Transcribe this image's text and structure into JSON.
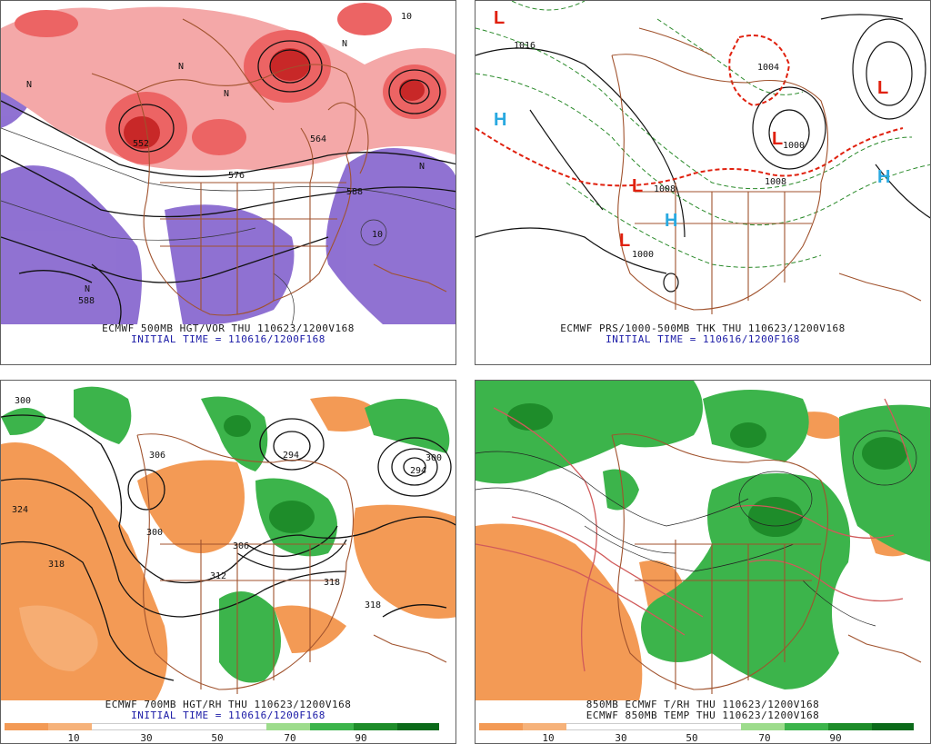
{
  "panels": {
    "p1": {
      "caption1": "ECMWF 500MB HGT/VOR THU 110623/1200V168",
      "caption2": "INITIAL TIME = 110616/1200F168",
      "labels": [
        "552",
        "576",
        "588",
        "588",
        "564",
        "10",
        "10",
        "N",
        "N",
        "N",
        "N",
        "N",
        "N"
      ]
    },
    "p2": {
      "caption1": "ECMWF PRS/1000-500MB THK THU 110623/1200V168",
      "caption2": "INITIAL TIME = 110616/1200F168",
      "highs": [
        "H",
        "H",
        "H"
      ],
      "lows": [
        "L",
        "L",
        "L",
        "L",
        "L"
      ],
      "labels": [
        "1016",
        "1008",
        "1000",
        "1000",
        "1008",
        "1004"
      ]
    },
    "p3": {
      "caption1": "ECMWF 700MB HGT/RH THU 110623/1200V168",
      "caption2": "INITIAL TIME = 110616/1200F168",
      "labels": [
        "300",
        "324",
        "318",
        "300",
        "306",
        "312",
        "318",
        "294",
        "300",
        "294",
        "318",
        "306"
      ],
      "colorbar_ticks": [
        "10",
        "30",
        "50",
        "70",
        "90"
      ]
    },
    "p4": {
      "caption1": "850MB ECMWF T/RH THU 110623/1200V168",
      "caption2": "ECMWF 850MB TEMP THU 110623/1200V168",
      "colorbar_ticks": [
        "10",
        "30",
        "50",
        "70",
        "90"
      ]
    }
  },
  "colors": {
    "vort_light": "#f4a8a8",
    "vort_mid": "#ec6464",
    "vort_dark": "#c82828",
    "neg_vort": "#8a6ad0",
    "borders": "#a0522d",
    "high": "#29a9e0",
    "low": "#e0200e",
    "thickness": "#2a8a2a",
    "thk540": "#e0200e",
    "rh_dry": "#f39a55",
    "rh_moist": "#3cb44b",
    "rh_wet": "#1e8c2a",
    "temp": "#d05a5a"
  },
  "colorbar": [
    "#f39a55",
    "#f6b27a",
    "#ffffff",
    "#ffffff",
    "#ffffff",
    "#ffffff",
    "#9ddc8c",
    "#3cb44b",
    "#1e8c2a",
    "#0b6a1a"
  ]
}
